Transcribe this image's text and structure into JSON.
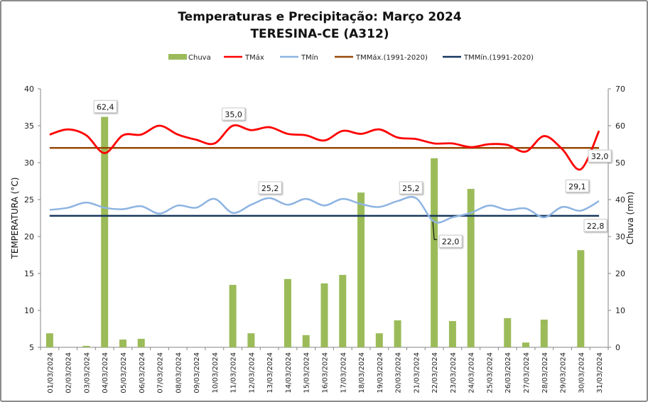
{
  "chart_data": {
    "type": "bar+line",
    "title": "Temperaturas e Precipitação: Março 2024",
    "subtitle": "TERESINA-CE (A312)",
    "ylabel": "TEMPERATURA (°C)",
    "y2label": "Chuva (mm)",
    "ylim": [
      5,
      40
    ],
    "y2lim": [
      0,
      70
    ],
    "yticks": [
      5,
      10,
      15,
      20,
      25,
      30,
      35,
      40
    ],
    "y2ticks": [
      0,
      10,
      20,
      30,
      40,
      50,
      60,
      70
    ],
    "grid": false,
    "legend_position": "top",
    "categories": [
      "01/03/2024",
      "02/03/2024",
      "03/03/2024",
      "04/03/2024",
      "05/03/2024",
      "06/03/2024",
      "07/03/2024",
      "08/03/2024",
      "09/03/2024",
      "10/03/2024",
      "11/03/2024",
      "12/03/2024",
      "13/03/2024",
      "14/03/2024",
      "15/03/2024",
      "16/03/2024",
      "17/03/2024",
      "18/03/2024",
      "19/03/2024",
      "20/03/2024",
      "21/03/2024",
      "22/03/2024",
      "23/03/2024",
      "24/03/2024",
      "25/03/2024",
      "26/03/2024",
      "27/03/2024",
      "28/03/2024",
      "29/03/2024",
      "30/03/2024",
      "31/03/2024"
    ],
    "series": [
      {
        "name": "Chuva",
        "type": "bar",
        "axis": "right",
        "color": "#9BBB59",
        "values": [
          3.8,
          0,
          0.4,
          62.4,
          2.1,
          2.3,
          0,
          0,
          0,
          0,
          16.9,
          3.8,
          0,
          18.5,
          3.3,
          17.3,
          19.6,
          41.9,
          3.8,
          7.3,
          0,
          51.2,
          7.1,
          42.9,
          0,
          7.9,
          1.3,
          7.5,
          0,
          26.3,
          0
        ]
      },
      {
        "name": "TMáx",
        "type": "line",
        "axis": "left",
        "color": "#FF0000",
        "values": [
          33.8,
          34.5,
          33.7,
          31.3,
          33.7,
          33.8,
          35.0,
          33.8,
          33.1,
          32.6,
          35.0,
          34.4,
          34.8,
          33.9,
          33.7,
          33.0,
          34.3,
          33.9,
          34.5,
          33.4,
          33.2,
          32.6,
          32.6,
          32.1,
          32.5,
          32.4,
          31.5,
          33.6,
          31.8,
          29.1,
          34.3
        ]
      },
      {
        "name": "TMín",
        "type": "line",
        "axis": "left",
        "color": "#8DB4E2",
        "values": [
          23.6,
          23.9,
          24.6,
          23.9,
          23.7,
          24.1,
          23.1,
          24.2,
          23.9,
          25.1,
          23.2,
          24.3,
          25.2,
          24.3,
          25.1,
          24.2,
          25.1,
          24.4,
          24.0,
          24.8,
          25.2,
          22.0,
          22.6,
          23.2,
          24.2,
          23.6,
          23.8,
          22.6,
          24.0,
          23.5,
          24.8
        ]
      },
      {
        "name": "TMMáx.(1991-2020)",
        "type": "hline",
        "axis": "left",
        "color": "#984807",
        "value": 32.0
      },
      {
        "name": "TMMín.(1991-2020)",
        "type": "hline",
        "axis": "left",
        "color": "#17375E",
        "value": 22.8
      }
    ],
    "data_labels": [
      {
        "series": 0,
        "index": 3,
        "text": "62,4"
      },
      {
        "series": 1,
        "index": 10,
        "text": "35,0"
      },
      {
        "series": 2,
        "index": 12,
        "text": "25,2"
      },
      {
        "series": 2,
        "index": 20,
        "text": "25,2"
      },
      {
        "series": 2,
        "index": 21,
        "text": "22,0"
      },
      {
        "series": 1,
        "index": 29,
        "text": "29,1"
      },
      {
        "series": 3,
        "index": 30,
        "text": "32,0"
      },
      {
        "series": 4,
        "index": 30,
        "text": "22,8"
      }
    ]
  }
}
